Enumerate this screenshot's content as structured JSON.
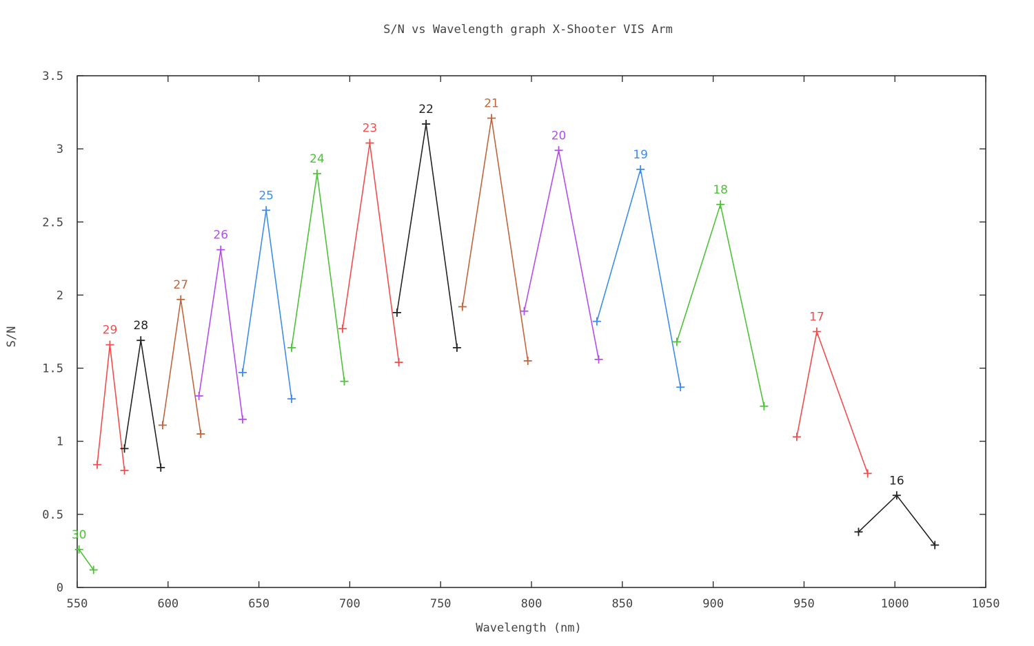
{
  "chart_data": {
    "type": "line",
    "title": "S/N vs Wavelength graph X-Shooter VIS Arm",
    "xlabel": "Wavelength (nm)",
    "ylabel": "S/N",
    "xlim": [
      550,
      1050
    ],
    "ylim": [
      0,
      3.5
    ],
    "x_ticks": [
      550,
      600,
      650,
      700,
      750,
      800,
      850,
      900,
      950,
      1000,
      1050
    ],
    "y_ticks": [
      0,
      0.5,
      1,
      1.5,
      2,
      2.5,
      3,
      3.5
    ],
    "x_tick_labels": [
      "550",
      "600",
      "650",
      "700",
      "750",
      "800",
      "850",
      "900",
      "950",
      "1000",
      "1050"
    ],
    "y_tick_labels": [
      "0",
      "0.5",
      "1",
      "1.5",
      "2",
      "2.5",
      "3",
      "3.5"
    ],
    "grid": false,
    "legend": "none",
    "marker": "plus",
    "series": [
      {
        "name": "30",
        "color": "#4cc236",
        "x": [
          551,
          559
        ],
        "y": [
          0.26,
          0.12
        ]
      },
      {
        "name": "29",
        "color": "#f34c4c",
        "x": [
          561,
          568,
          576
        ],
        "y": [
          0.84,
          1.66,
          0.8
        ]
      },
      {
        "name": "28",
        "color": "#222222",
        "x": [
          576,
          585,
          596
        ],
        "y": [
          0.95,
          1.69,
          0.82
        ]
      },
      {
        "name": "27",
        "color": "#c0643c",
        "x": [
          597,
          607,
          618
        ],
        "y": [
          1.11,
          1.97,
          1.05
        ]
      },
      {
        "name": "26",
        "color": "#b44cf0",
        "x": [
          617,
          629,
          641
        ],
        "y": [
          1.31,
          2.31,
          1.15
        ]
      },
      {
        "name": "25",
        "color": "#3c8cf0",
        "x": [
          641,
          654,
          668
        ],
        "y": [
          1.47,
          2.58,
          1.29
        ]
      },
      {
        "name": "24",
        "color": "#4cc236",
        "x": [
          668,
          682,
          697
        ],
        "y": [
          1.64,
          2.83,
          1.41
        ]
      },
      {
        "name": "23",
        "color": "#f34c4c",
        "x": [
          696,
          711,
          727
        ],
        "y": [
          1.77,
          3.04,
          1.54
        ]
      },
      {
        "name": "22",
        "color": "#222222",
        "x": [
          726,
          742,
          759
        ],
        "y": [
          1.88,
          3.17,
          1.64
        ]
      },
      {
        "name": "21",
        "color": "#c0643c",
        "x": [
          762,
          778,
          798
        ],
        "y": [
          1.92,
          3.21,
          1.55
        ]
      },
      {
        "name": "20",
        "color": "#b44cf0",
        "x": [
          796,
          815,
          837
        ],
        "y": [
          1.89,
          2.99,
          1.56
        ]
      },
      {
        "name": "19",
        "color": "#3c8cf0",
        "x": [
          836,
          860,
          882
        ],
        "y": [
          1.82,
          2.86,
          1.37
        ]
      },
      {
        "name": "18",
        "color": "#4cc236",
        "x": [
          880,
          904,
          928
        ],
        "y": [
          1.68,
          2.62,
          1.24
        ]
      },
      {
        "name": "17",
        "color": "#f34c4c",
        "x": [
          946,
          957,
          985
        ],
        "y": [
          1.03,
          1.75,
          0.78
        ]
      },
      {
        "name": "16",
        "color": "#222222",
        "x": [
          980,
          1001,
          1022
        ],
        "y": [
          0.38,
          0.63,
          0.29
        ]
      }
    ]
  }
}
